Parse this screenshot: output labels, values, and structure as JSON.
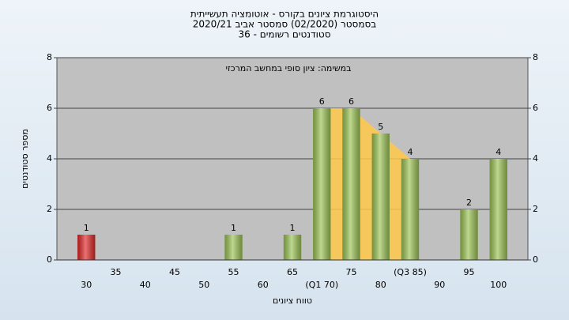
{
  "chart_data": {
    "type": "bar",
    "title": "היסטוגרמת ציונים בקורס - אוטומציה תעשייתית",
    "subtitle": "בסמסטר  (02/2020)  סמסטר אביב 2020/21",
    "subtitle2": "סטודנטים רשומים - 36",
    "annotation": "במשימה: ציון סופי במחשב המרכזי",
    "x_label": "טווח ציונים",
    "y_label": "מספר סטודנטים",
    "categories": [
      "30",
      "35",
      "40",
      "45",
      "50",
      "55",
      "60",
      "65",
      "(Q1 70)",
      "75",
      "80",
      "(Q3 85)",
      "90",
      "95",
      "100"
    ],
    "values": [
      1,
      0,
      0,
      0,
      0,
      1,
      0,
      1,
      6,
      6,
      5,
      4,
      0,
      2,
      4
    ],
    "colors": [
      "#e02828",
      "#9cc455",
      "#9cc455",
      "#9cc455",
      "#9cc455",
      "#9cc455",
      "#9cc455",
      "#9cc455",
      "#9cc455",
      "#9cc455",
      "#9cc455",
      "#9cc455",
      "#9cc455",
      "#9cc455",
      "#9cc455"
    ],
    "band_color": "#ffc94a",
    "ylim": [
      0,
      8
    ],
    "yticks": [
      0,
      2,
      4,
      6,
      8
    ],
    "grid": true
  }
}
